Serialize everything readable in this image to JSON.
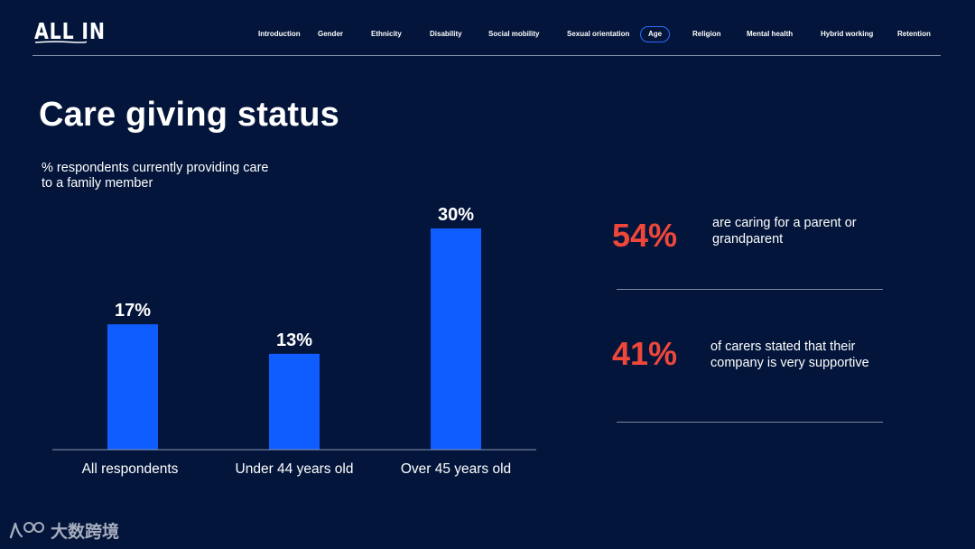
{
  "header": {
    "logo_text": "ALL IN",
    "nav": [
      {
        "label": "Introduction",
        "active": false
      },
      {
        "label": "Gender",
        "active": false
      },
      {
        "label": "Ethnicity",
        "active": false
      },
      {
        "label": "Disability",
        "active": false
      },
      {
        "label": "Social mobility",
        "active": false
      },
      {
        "label": "Sexual orientation",
        "active": false
      },
      {
        "label": "Age",
        "active": true
      },
      {
        "label": "Religion",
        "active": false
      },
      {
        "label": "Mental health",
        "active": false
      },
      {
        "label": "Hybrid working",
        "active": false
      },
      {
        "label": "Retention",
        "active": false
      }
    ]
  },
  "main": {
    "title": "Care giving status",
    "chart_subtitle": "% respondents currently providing care to a family member"
  },
  "chart_data": {
    "type": "bar",
    "title": "% respondents currently providing care to a family member",
    "categories": [
      "All respondents",
      "Under 44 years old",
      "Over 45 years old"
    ],
    "values": [
      17,
      13,
      30
    ],
    "data_labels": [
      "17%",
      "13%",
      "30%"
    ],
    "xlabel": "",
    "ylabel": "",
    "ylim": [
      0,
      30
    ],
    "grid": false,
    "bar_color": "#0f5cff"
  },
  "stats": [
    {
      "value": "54%",
      "text": "are caring for a parent or grandparent"
    },
    {
      "value": "41%",
      "text": "of carers stated that their company is very supportive"
    }
  ],
  "watermark": {
    "text": "大数跨境"
  },
  "colors": {
    "background": "#03153a",
    "accent_bar": "#0f5cff",
    "stat_red": "#f0473a",
    "nav_active_border": "#2a6cff"
  }
}
